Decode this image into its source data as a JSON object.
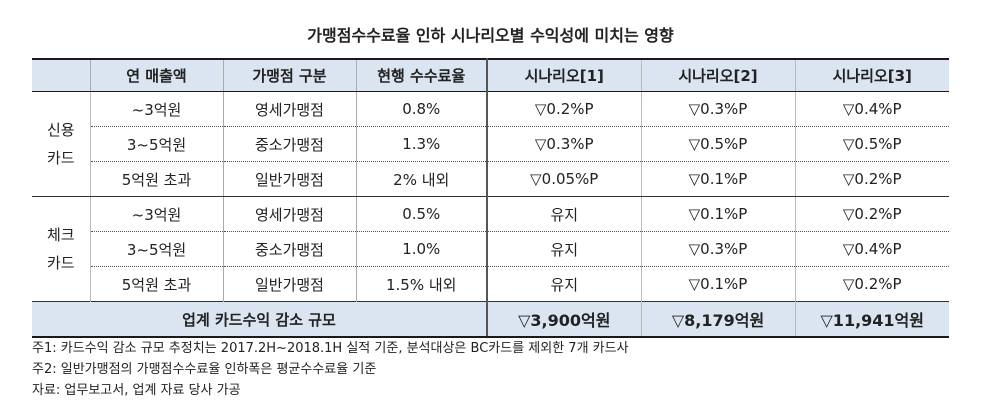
{
  "title": "가맹점수수료율 인하 시나리오별 수익성에 미치는 영향",
  "headers": [
    "연 매출액",
    "가맹점 구분",
    "현행 수수료율",
    "시나리오[1]",
    "시나리오[2]",
    "시나리오[3]"
  ],
  "groups": [
    {
      "label_line1": "신용",
      "label_line2": "카드",
      "rows": [
        {
          "sales": "~3억원",
          "type": "영세가맹점",
          "rate": "0.8%",
          "s1": "▽0.2%P",
          "s2": "▽0.3%P",
          "s3": "▽0.4%P"
        },
        {
          "sales": "3~5억원",
          "type": "중소가맹점",
          "rate": "1.3%",
          "s1": "▽0.3%P",
          "s2": "▽0.5%P",
          "s3": "▽0.5%P"
        },
        {
          "sales": "5억원 초과",
          "type": "일반가맹점",
          "rate": "2% 내외",
          "s1": "▽0.05%P",
          "s2": "▽0.1%P",
          "s3": "▽0.2%P"
        }
      ]
    },
    {
      "label_line1": "체크",
      "label_line2": "카드",
      "rows": [
        {
          "sales": "~3억원",
          "type": "영세가맹점",
          "rate": "0.5%",
          "s1": "유지",
          "s2": "▽0.1%P",
          "s3": "▽0.2%P"
        },
        {
          "sales": "3~5억원",
          "type": "중소가맹점",
          "rate": "1.0%",
          "s1": "유지",
          "s2": "▽0.3%P",
          "s3": "▽0.4%P"
        },
        {
          "sales": "5억원 초과",
          "type": "일반가맹점",
          "rate": "1.5% 내외",
          "s1": "유지",
          "s2": "▽0.1%P",
          "s3": "▽0.2%P"
        }
      ]
    }
  ],
  "summary": {
    "label": "업계 카드수익 감소 규모",
    "s1": "▽3,900억원",
    "s2": "▽8,179억원",
    "s3": "▽11,941억원"
  },
  "notes": [
    "주1: 카드수익 감소 규모 추정치는 2017.2H~2018.1H 실적 기준, 분석대상은 BC카드를 제외한 7개 카드사",
    "주2: 일반가맹점의 가맹점수수료율 인하폭은 평균수수료율 기준",
    "자료: 업무보고서, 업계 자료 당사 가공"
  ]
}
